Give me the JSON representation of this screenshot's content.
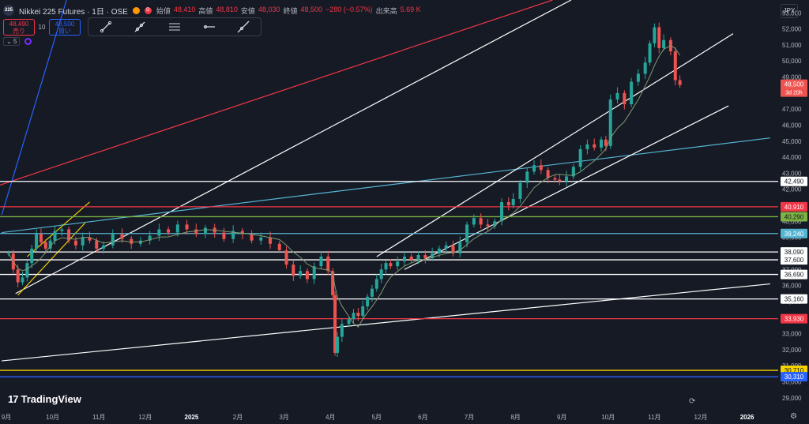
{
  "header": {
    "symbol_icon": "225",
    "title": "Nikkei 225 Futures · 1日 · OSE",
    "status_dot_colors": [
      "#ff9800",
      "#f23645"
    ],
    "status_d": "D",
    "ohlc": [
      {
        "k": "始値",
        "v": "48,410"
      },
      {
        "k": "高値",
        "v": "48,810"
      },
      {
        "k": "安値",
        "v": "48,030"
      },
      {
        "k": "終値",
        "v": "48,500"
      },
      {
        "k": "",
        "v": "−280 (−0.57%)"
      },
      {
        "k": "出来高",
        "v": "5.69 K"
      }
    ]
  },
  "trade": {
    "sell_price": "48,490",
    "sell_label": "売り",
    "qty": "10",
    "buy_price": "48,500",
    "buy_label": "買い"
  },
  "toolbar": {
    "icons": [
      "trend-line-icon",
      "ray-icon",
      "parallel-channel-icon",
      "horizontal-ray-icon",
      "extended-line-icon"
    ]
  },
  "indicators": {
    "count": "5"
  },
  "currency": "JPY",
  "branding": {
    "logo": "TradingView"
  },
  "colors": {
    "background": "#161a25",
    "up": "#26a69a",
    "down": "#ef5350",
    "ma": "#7e9a72",
    "red_level": "#f23645",
    "white_level": "#ffffff",
    "cyan": "#56b4d3",
    "green_level": "#7cb342",
    "yellow_level": "#f5d300",
    "blue_level": "#2962ff"
  },
  "chart_data": {
    "type": "candlestick",
    "symbol": "Nikkei 225 Futures",
    "timeframe": "1日",
    "exchange": "OSE",
    "y_axis": {
      "ticks": [
        29000,
        30000,
        31000,
        32000,
        33000,
        34000,
        35000,
        36000,
        37000,
        38000,
        39000,
        40000,
        41000,
        42000,
        43000,
        44000,
        45000,
        46000,
        47000,
        48000,
        49000,
        50000,
        51000,
        52000,
        53000
      ],
      "range": [
        28300,
        53800
      ]
    },
    "x_axis": {
      "labels": [
        "9月",
        "10月",
        "11月",
        "12月",
        "2025",
        "2月",
        "3月",
        "4月",
        "5月",
        "6月",
        "7月",
        "8月",
        "9月",
        "10月",
        "11月",
        "12月",
        "2026"
      ],
      "label_values": [
        0,
        1,
        2,
        3,
        4,
        5,
        6,
        7,
        8,
        9,
        10,
        11,
        12,
        13,
        14,
        15,
        16
      ]
    },
    "series": [
      {
        "name": "Nikkei 225 Futures",
        "points": [
          [
            0.05,
            38000
          ],
          [
            0.15,
            37000
          ],
          [
            0.25,
            36200
          ],
          [
            0.35,
            36500
          ],
          [
            0.45,
            37400
          ],
          [
            0.55,
            38300
          ],
          [
            0.65,
            39200
          ],
          [
            0.75,
            38700
          ],
          [
            0.85,
            38300
          ],
          [
            0.95,
            38800
          ],
          [
            1.05,
            39400
          ],
          [
            1.2,
            39500
          ],
          [
            1.35,
            38800
          ],
          [
            1.5,
            38500
          ],
          [
            1.65,
            39000
          ],
          [
            1.8,
            38800
          ],
          [
            1.95,
            38300
          ],
          [
            2.1,
            38500
          ],
          [
            2.3,
            39200
          ],
          [
            2.5,
            38900
          ],
          [
            2.7,
            38600
          ],
          [
            2.9,
            38800
          ],
          [
            3.1,
            39100
          ],
          [
            3.3,
            39500
          ],
          [
            3.5,
            39300
          ],
          [
            3.7,
            39800
          ],
          [
            3.9,
            39500
          ],
          [
            4.1,
            39200
          ],
          [
            4.3,
            39600
          ],
          [
            4.5,
            39300
          ],
          [
            4.7,
            38900
          ],
          [
            4.9,
            39400
          ],
          [
            5.1,
            39200
          ],
          [
            5.3,
            38800
          ],
          [
            5.5,
            39000
          ],
          [
            5.7,
            38600
          ],
          [
            5.9,
            38200
          ],
          [
            6.05,
            37300
          ],
          [
            6.2,
            36600
          ],
          [
            6.35,
            36900
          ],
          [
            6.5,
            36400
          ],
          [
            6.65,
            37200
          ],
          [
            6.8,
            37800
          ],
          [
            6.95,
            36900
          ],
          [
            7.05,
            35400
          ],
          [
            7.1,
            31800
          ],
          [
            7.15,
            32800
          ],
          [
            7.25,
            33600
          ],
          [
            7.4,
            33900
          ],
          [
            7.5,
            34300
          ],
          [
            7.6,
            34100
          ],
          [
            7.7,
            34700
          ],
          [
            7.8,
            35300
          ],
          [
            7.9,
            35800
          ],
          [
            8.0,
            36400
          ],
          [
            8.1,
            37000
          ],
          [
            8.2,
            37400
          ],
          [
            8.3,
            37200
          ],
          [
            8.45,
            37500
          ],
          [
            8.6,
            37800
          ],
          [
            8.75,
            37600
          ],
          [
            8.9,
            37900
          ],
          [
            9.05,
            37700
          ],
          [
            9.2,
            38000
          ],
          [
            9.35,
            38300
          ],
          [
            9.5,
            38500
          ],
          [
            9.65,
            38000
          ],
          [
            9.8,
            38700
          ],
          [
            9.95,
            39800
          ],
          [
            10.1,
            40200
          ],
          [
            10.25,
            39800
          ],
          [
            10.4,
            39700
          ],
          [
            10.55,
            40000
          ],
          [
            10.7,
            41200
          ],
          [
            10.85,
            41000
          ],
          [
            10.95,
            41400
          ],
          [
            11.1,
            42400
          ],
          [
            11.25,
            43100
          ],
          [
            11.4,
            43500
          ],
          [
            11.55,
            43200
          ],
          [
            11.7,
            42700
          ],
          [
            11.85,
            42600
          ],
          [
            11.95,
            42500
          ],
          [
            12.1,
            42800
          ],
          [
            12.25,
            43400
          ],
          [
            12.4,
            44500
          ],
          [
            12.55,
            44800
          ],
          [
            12.7,
            44600
          ],
          [
            12.85,
            45100
          ],
          [
            12.95,
            44700
          ],
          [
            13.05,
            47600
          ],
          [
            13.2,
            48000
          ],
          [
            13.35,
            47300
          ],
          [
            13.5,
            48700
          ],
          [
            13.65,
            49200
          ],
          [
            13.8,
            49900
          ],
          [
            13.9,
            51100
          ],
          [
            14.0,
            52100
          ],
          [
            14.1,
            50800
          ],
          [
            14.2,
            51300
          ],
          [
            14.35,
            50600
          ],
          [
            14.45,
            48800
          ],
          [
            14.55,
            48500
          ]
        ]
      }
    ],
    "horizontal_levels": [
      {
        "value": 42490,
        "label": "42,490",
        "color": "white"
      },
      {
        "value": 40910,
        "label": "40,910",
        "color": "red"
      },
      {
        "value": 40290,
        "label": "40,290",
        "color": "green"
      },
      {
        "value": 39240,
        "label": "39,240",
        "color": "cyan"
      },
      {
        "value": 38090,
        "label": "38,090",
        "color": "white"
      },
      {
        "value": 37600,
        "label": "37,600",
        "color": "white"
      },
      {
        "value": 36690,
        "label": "36,690",
        "color": "white"
      },
      {
        "value": 35160,
        "label": "35,160",
        "color": "white"
      },
      {
        "value": 33930,
        "label": "33,930",
        "color": "red"
      },
      {
        "value": 30710,
        "label": "30,710",
        "color": "yellow"
      },
      {
        "value": 30310,
        "label": "30,310",
        "color": "blue"
      }
    ],
    "last_price": {
      "value": 48500,
      "label": "48,500",
      "countdown": "3d 20h"
    },
    "trend_lines": [
      {
        "x1": -0.2,
        "y1": 42200,
        "x2": 11.8,
        "y2": 53800,
        "color": "red"
      },
      {
        "x1": -0.1,
        "y1": 40400,
        "x2": 1.3,
        "y2": 53800,
        "color": "blue"
      },
      {
        "x1": 0.2,
        "y1": 35500,
        "x2": 12.2,
        "y2": 53800,
        "color": "white"
      },
      {
        "x1": -0.1,
        "y1": 39300,
        "x2": 16.5,
        "y2": 45200,
        "color": "cyan"
      },
      {
        "x1": -0.1,
        "y1": 31300,
        "x2": 16.5,
        "y2": 36100,
        "color": "white"
      },
      {
        "x1": 8.0,
        "y1": 37800,
        "x2": 15.7,
        "y2": 51700,
        "color": "white"
      },
      {
        "x1": 8.6,
        "y1": 37000,
        "x2": 15.6,
        "y2": 47200,
        "color": "white"
      },
      {
        "x1": 0.25,
        "y1": 35400,
        "x2": 1.7,
        "y2": 39900,
        "color": "yellow"
      },
      {
        "x1": 0.45,
        "y1": 37800,
        "x2": 1.8,
        "y2": 41200,
        "color": "yellow"
      }
    ]
  }
}
